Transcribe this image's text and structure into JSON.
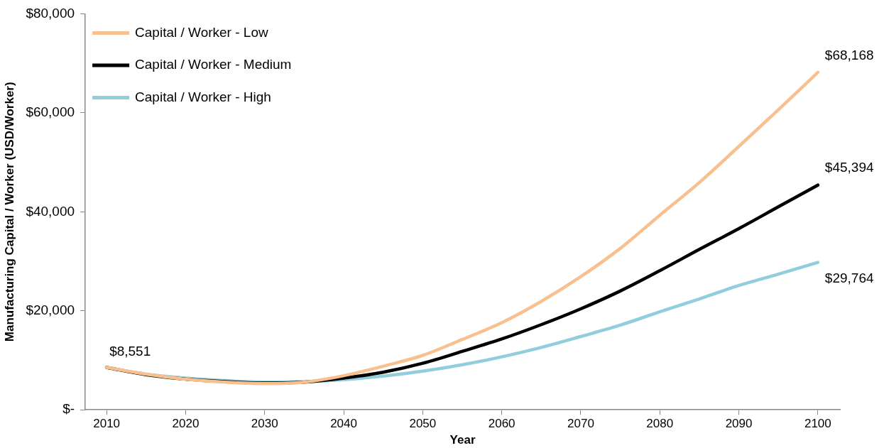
{
  "chart_data": {
    "type": "line",
    "xlabel": "Year",
    "ylabel": "Manufacturing Capital / Worker (USD/Worker)",
    "x": [
      2010,
      2015,
      2020,
      2025,
      2030,
      2035,
      2040,
      2045,
      2050,
      2055,
      2060,
      2065,
      2070,
      2075,
      2080,
      2085,
      2090,
      2095,
      2100
    ],
    "xlim": [
      2007.3,
      2102.8
    ],
    "xticks": [
      2010,
      2020,
      2030,
      2040,
      2050,
      2060,
      2070,
      2080,
      2090,
      2100
    ],
    "ylim": [
      0,
      80000
    ],
    "yticks": [
      {
        "value": 0,
        "label": "$-"
      },
      {
        "value": 20000,
        "label": "$20,000"
      },
      {
        "value": 40000,
        "label": "$40,000"
      },
      {
        "value": 60000,
        "label": "$60,000"
      },
      {
        "value": 80000,
        "label": "$80,000"
      }
    ],
    "grid": false,
    "legend": "top left",
    "marker": "none",
    "line_style": "solid",
    "series": [
      {
        "name": "Capital / Worker - Low",
        "color": "#f9c08f",
        "values": [
          8551,
          7200,
          6200,
          5600,
          5300,
          5600,
          6900,
          8800,
          11000,
          14200,
          17600,
          21900,
          26900,
          32600,
          39300,
          45900,
          53200,
          60600,
          68168
        ],
        "value_labels": [
          null,
          null,
          null,
          null,
          null,
          null,
          null,
          null,
          null,
          null,
          null,
          null,
          null,
          null,
          null,
          null,
          null,
          null,
          "$68,168"
        ]
      },
      {
        "name": "Capital / Worker - Medium",
        "color": "#000000",
        "values": [
          8551,
          7100,
          6200,
          5700,
          5400,
          5600,
          6400,
          7600,
          9400,
          11800,
          14300,
          17200,
          20400,
          24000,
          28100,
          32400,
          36600,
          41000,
          45394
        ],
        "value_labels": [
          null,
          null,
          null,
          null,
          null,
          null,
          null,
          null,
          null,
          null,
          null,
          null,
          null,
          null,
          null,
          null,
          null,
          null,
          "$45,394"
        ]
      },
      {
        "name": "Capital / Worker - High",
        "color": "#92cddc",
        "values": [
          8551,
          7200,
          6400,
          5900,
          5600,
          5700,
          6100,
          6800,
          7800,
          9100,
          10700,
          12600,
          14800,
          17100,
          19800,
          22400,
          25100,
          27400,
          29764
        ],
        "value_labels": [
          "$8,551",
          null,
          null,
          null,
          null,
          null,
          null,
          null,
          null,
          null,
          null,
          null,
          null,
          null,
          null,
          null,
          null,
          null,
          "$29,764"
        ]
      }
    ]
  }
}
